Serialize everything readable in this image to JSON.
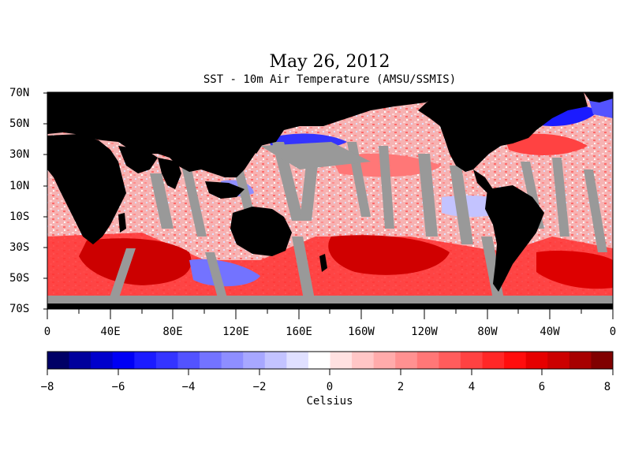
{
  "title": "May 26, 2012",
  "subtitle": "SST - 10m Air Temperature (AMSU/SSMIS)",
  "map": {
    "lat_labels": [
      "70N",
      "50N",
      "30N",
      "10N",
      "10S",
      "30S",
      "50S",
      "70S"
    ],
    "lon_labels": [
      "0",
      "40E",
      "80E",
      "120E",
      "160E",
      "160W",
      "120W",
      "80W",
      "40W",
      "0"
    ],
    "colors": {
      "land": "#000000",
      "no_data": "#999999",
      "ocean_base": "#f6b6b6"
    }
  },
  "colorbar": {
    "unit": "Celsius",
    "tick_labels": [
      "−8",
      "−6",
      "−4",
      "−2",
      "0",
      "2",
      "4",
      "6",
      "8"
    ],
    "range": [
      -8,
      8
    ],
    "colors": [
      "#000066",
      "#00009c",
      "#0000cc",
      "#0000f5",
      "#1b1bff",
      "#3434ff",
      "#5353ff",
      "#7373ff",
      "#8e8eff",
      "#a7a7ff",
      "#c3c3ff",
      "#e0e0ff",
      "#ffffff",
      "#ffe1e1",
      "#ffc6c6",
      "#ffabab",
      "#ff9191",
      "#ff7777",
      "#ff5c5c",
      "#ff4242",
      "#ff2727",
      "#ff0d0d",
      "#e60000",
      "#cc0000",
      "#a70000",
      "#800000"
    ]
  }
}
